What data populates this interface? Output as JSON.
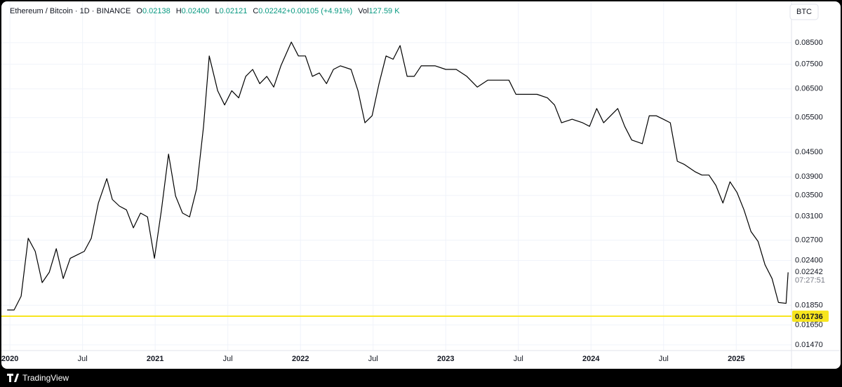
{
  "chart_data": {
    "type": "line",
    "header": {
      "symbol": "Ethereum / Bitcoin · 1D · BINANCE",
      "stats": [
        {
          "key": "O",
          "text": "0.02138"
        },
        {
          "key": "H",
          "text": "0.02400"
        },
        {
          "key": "L",
          "text": "0.02121"
        },
        {
          "key": "C",
          "text": "0.02242"
        },
        {
          "key": "",
          "text": "+0.00105 (+4.91%)"
        },
        {
          "key": "Vol",
          "text": "127.59 K"
        }
      ]
    },
    "currency": "BTC",
    "brand": "TradingView",
    "color": "#000000",
    "log_scale": true,
    "grid": true,
    "xlim": [
      2019.98,
      2025.38
    ],
    "xticks": [
      2020,
      {
        "value": 2020.5,
        "label": "Jul"
      },
      2021,
      {
        "value": 2021.5,
        "label": "Jul"
      },
      2022,
      {
        "value": 2022.5,
        "label": "Jul"
      },
      2023,
      {
        "value": 2023.5,
        "label": "Jul"
      },
      2024,
      {
        "value": 2024.5,
        "label": "Jul"
      },
      2025
    ],
    "ylim": [
      0.01422,
      0.0964
    ],
    "yticks": [
      {
        "value": 0.085,
        "label": "0.08500"
      },
      {
        "value": 0.075,
        "label": "0.07500"
      },
      {
        "value": 0.065,
        "label": "0.06500"
      },
      {
        "value": 0.055,
        "label": "0.05500"
      },
      {
        "value": 0.045,
        "label": "0.04500"
      },
      {
        "value": 0.039,
        "label": "0.03900"
      },
      {
        "value": 0.035,
        "label": "0.03500"
      },
      {
        "value": 0.031,
        "label": "0.03100"
      },
      {
        "value": 0.027,
        "label": "0.02700"
      },
      {
        "value": 0.024,
        "label": "0.02400"
      },
      {
        "value": 0.0185,
        "label": "0.01850"
      },
      {
        "value": 0.0165,
        "label": "0.01650"
      },
      {
        "value": 0.0147,
        "label": "0.01470"
      }
    ],
    "last_price": 0.02242,
    "countdown": "07:27:51",
    "hline": {
      "value": 0.01736,
      "color": "#f7e51e"
    },
    "x": [
      2019.981,
      2020.029,
      2020.077,
      2020.126,
      2020.174,
      2020.222,
      2020.271,
      2020.319,
      2020.367,
      2020.415,
      2020.464,
      2020.512,
      2020.56,
      2020.609,
      2020.667,
      2020.705,
      2020.754,
      2020.802,
      2020.85,
      2020.899,
      2020.947,
      2020.995,
      2021.043,
      2021.092,
      2021.14,
      2021.188,
      2021.237,
      2021.285,
      2021.333,
      2021.372,
      2021.43,
      2021.478,
      2021.527,
      2021.575,
      2021.623,
      2021.671,
      2021.72,
      2021.768,
      2021.816,
      2021.865,
      2021.937,
      2021.986,
      2022.034,
      2022.082,
      2022.13,
      2022.179,
      2022.227,
      2022.275,
      2022.348,
      2022.396,
      2022.444,
      2022.493,
      2022.541,
      2022.589,
      2022.638,
      2022.686,
      2022.734,
      2022.783,
      2022.831,
      2022.928,
      2023.0,
      2023.072,
      2023.145,
      2023.217,
      2023.29,
      2023.362,
      2023.435,
      2023.483,
      2023.556,
      2023.628,
      2023.7,
      2023.749,
      2023.797,
      2023.87,
      2023.942,
      2023.99,
      2024.039,
      2024.087,
      2024.135,
      2024.184,
      2024.232,
      2024.28,
      2024.353,
      2024.401,
      2024.449,
      2024.498,
      2024.546,
      2024.594,
      2024.643,
      2024.715,
      2024.763,
      2024.812,
      2024.86,
      2024.908,
      2024.957,
      2025.005,
      2025.053,
      2025.101,
      2025.15,
      2025.198,
      2025.246,
      2025.29,
      2025.343,
      2025.357
    ],
    "values": [
      0.018,
      0.018,
      0.0195,
      0.0273,
      0.0253,
      0.0211,
      0.0224,
      0.0257,
      0.0216,
      0.0243,
      0.0248,
      0.0253,
      0.0273,
      0.0335,
      0.0386,
      0.0342,
      0.0329,
      0.0322,
      0.029,
      0.0316,
      0.0309,
      0.0243,
      0.0322,
      0.0445,
      0.0349,
      0.0316,
      0.0309,
      0.0364,
      0.0523,
      0.0787,
      0.0643,
      0.0592,
      0.0643,
      0.0617,
      0.0699,
      0.0728,
      0.067,
      0.0699,
      0.0657,
      0.0743,
      0.0853,
      0.0787,
      0.0787,
      0.0699,
      0.0713,
      0.067,
      0.0728,
      0.0743,
      0.0728,
      0.0643,
      0.0534,
      0.0556,
      0.067,
      0.0787,
      0.0772,
      0.0836,
      0.0699,
      0.0699,
      0.0743,
      0.0743,
      0.0728,
      0.0728,
      0.0699,
      0.0657,
      0.0684,
      0.0684,
      0.0684,
      0.063,
      0.063,
      0.063,
      0.0617,
      0.0592,
      0.0534,
      0.0545,
      0.0534,
      0.0523,
      0.058,
      0.0534,
      0.0556,
      0.058,
      0.0523,
      0.0483,
      0.0473,
      0.0556,
      0.0556,
      0.0545,
      0.0534,
      0.0427,
      0.0419,
      0.0402,
      0.0394,
      0.0394,
      0.0371,
      0.0335,
      0.0379,
      0.0356,
      0.0322,
      0.0284,
      0.0268,
      0.0234,
      0.0216,
      0.0188,
      0.0187,
      0.0224
    ]
  }
}
